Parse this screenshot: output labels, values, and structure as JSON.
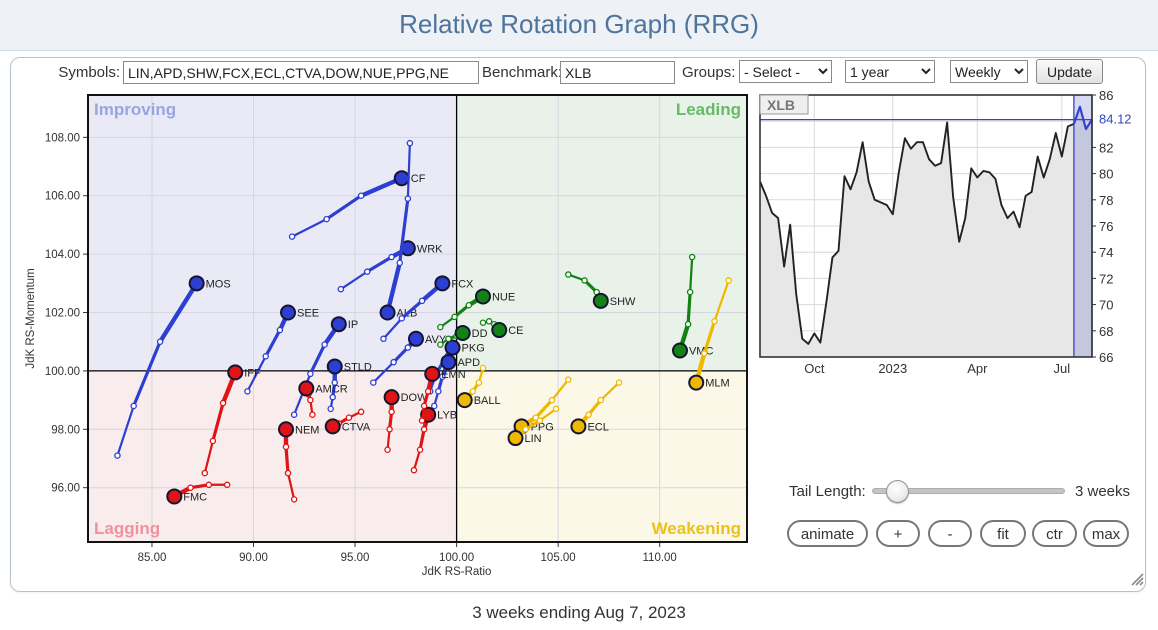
{
  "header": {
    "title": "Relative Rotation Graph (RRG)"
  },
  "controls": {
    "symbols_label": "Symbols:",
    "symbols_value": "LIN,APD,SHW,FCX,ECL,CTVA,DOW,NUE,PPG,NE",
    "benchmark_label": "Benchmark:",
    "benchmark_value": "XLB",
    "groups_label": "Groups:",
    "groups_value": "- Select -",
    "period_value": "1 year",
    "interval_value": "Weekly",
    "update_label": "Update"
  },
  "tail_control": {
    "label": "Tail Length:",
    "value": "3 weeks"
  },
  "buttons": {
    "animate": "animate",
    "plus": "+",
    "minus": "-",
    "fit": "fit",
    "ctr": "ctr",
    "max": "max"
  },
  "footer": {
    "caption": "3 weeks ending Aug 7, 2023"
  },
  "colors": {
    "series": {
      "blue": "#2d3fd3",
      "red": "#e01414",
      "green": "#128312",
      "yellow": "#efb800"
    },
    "node_stroke": "#141433",
    "quadrant_bg": {
      "improving": "#e9eaf6",
      "leading": "#e9f2e9",
      "lagging": "#f9ecec",
      "weakening": "#fbf8e8"
    },
    "quadrant_text": {
      "improving": "#98a6e0",
      "leading": "#66bc66",
      "lagging": "#f2919d",
      "weakening": "#ecc11c"
    },
    "grid": "#d6d6de",
    "axis": "#111111",
    "price_line": "#222222",
    "price_accent": "#3344cc",
    "price_fill": "#e7e7e7",
    "band_fill": "rgba(110,120,200,0.28)"
  },
  "chart_data": [
    {
      "type": "scatter",
      "title": "Relative Rotation Graph",
      "xlabel": "JdK RS-Ratio",
      "ylabel": "JdK RS-Momentum",
      "xlim": [
        81.85,
        114.3
      ],
      "ylim": [
        94.14,
        109.45
      ],
      "xticks": [
        85,
        90,
        95,
        100,
        105,
        110
      ],
      "yticks": [
        96,
        98,
        100,
        102,
        104,
        106,
        108
      ],
      "center": [
        100,
        100
      ],
      "grid": true,
      "quadrant_labels": {
        "improving": "Improving",
        "leading": "Leading",
        "lagging": "Lagging",
        "weakening": "Weakening"
      },
      "series": [
        {
          "name": "MOS",
          "color": "blue",
          "points": [
            [
              83.3,
              97.1
            ],
            [
              84.1,
              98.8
            ],
            [
              85.4,
              101.0
            ],
            [
              87.2,
              103.0
            ]
          ]
        },
        {
          "name": "CF",
          "color": "blue",
          "points": [
            [
              91.9,
              104.6
            ],
            [
              93.6,
              105.2
            ],
            [
              95.3,
              106.0
            ],
            [
              97.3,
              106.6
            ]
          ]
        },
        {
          "name": "WRK",
          "color": "blue",
          "points": [
            [
              94.3,
              102.8
            ],
            [
              95.6,
              103.4
            ],
            [
              96.8,
              103.9
            ],
            [
              97.6,
              104.2
            ]
          ]
        },
        {
          "name": "ALB",
          "color": "blue",
          "points": [
            [
              97.7,
              107.8
            ],
            [
              97.6,
              105.9
            ],
            [
              97.2,
              103.7
            ],
            [
              96.6,
              102.0
            ]
          ]
        },
        {
          "name": "SEE",
          "color": "blue",
          "points": [
            [
              89.7,
              99.3
            ],
            [
              90.6,
              100.5
            ],
            [
              91.3,
              101.4
            ],
            [
              91.7,
              102.0
            ]
          ]
        },
        {
          "name": "IP",
          "color": "blue",
          "points": [
            [
              92.0,
              98.5
            ],
            [
              92.8,
              99.9
            ],
            [
              93.5,
              100.9
            ],
            [
              94.2,
              101.6
            ]
          ]
        },
        {
          "name": "FCX",
          "color": "blue",
          "points": [
            [
              96.4,
              101.1
            ],
            [
              97.3,
              101.8
            ],
            [
              98.3,
              102.4
            ],
            [
              99.3,
              103.0
            ]
          ]
        },
        {
          "name": "AVY",
          "color": "blue",
          "points": [
            [
              95.9,
              99.6
            ],
            [
              96.9,
              100.3
            ],
            [
              97.6,
              100.8
            ],
            [
              98.0,
              101.1
            ]
          ]
        },
        {
          "name": "PKG",
          "color": "blue",
          "points": [
            [
              98.7,
              99.3
            ],
            [
              99.0,
              99.9
            ],
            [
              99.4,
              100.4
            ],
            [
              99.8,
              100.8
            ]
          ]
        },
        {
          "name": "APD",
          "color": "blue",
          "points": [
            [
              98.9,
              98.8
            ],
            [
              99.1,
              99.3
            ],
            [
              99.3,
              99.8
            ],
            [
              99.6,
              100.3
            ]
          ]
        },
        {
          "name": "STLD",
          "color": "blue",
          "points": [
            [
              93.8,
              98.7
            ],
            [
              93.9,
              99.1
            ],
            [
              94.0,
              99.6
            ],
            [
              94.0,
              100.15
            ]
          ]
        },
        {
          "name": "IFF",
          "color": "red",
          "points": [
            [
              87.6,
              96.5
            ],
            [
              88.0,
              97.6
            ],
            [
              88.5,
              98.9
            ],
            [
              89.1,
              99.95
            ]
          ]
        },
        {
          "name": "AMCR",
          "color": "red",
          "points": [
            [
              92.9,
              98.5
            ],
            [
              92.8,
              99.0
            ],
            [
              92.7,
              99.2
            ],
            [
              92.6,
              99.4
            ]
          ]
        },
        {
          "name": "NEM",
          "color": "red",
          "points": [
            [
              92.0,
              95.6
            ],
            [
              91.7,
              96.5
            ],
            [
              91.6,
              97.4
            ],
            [
              91.6,
              98.0
            ]
          ]
        },
        {
          "name": "CTVA",
          "color": "red",
          "points": [
            [
              95.3,
              98.6
            ],
            [
              94.7,
              98.4
            ],
            [
              94.2,
              98.2
            ],
            [
              93.9,
              98.1
            ]
          ]
        },
        {
          "name": "DOW",
          "color": "red",
          "points": [
            [
              96.6,
              97.3
            ],
            [
              96.7,
              98.0
            ],
            [
              96.8,
              98.6
            ],
            [
              96.8,
              99.1
            ]
          ]
        },
        {
          "name": "LYB",
          "color": "red",
          "points": [
            [
              97.9,
              96.6
            ],
            [
              98.2,
              97.3
            ],
            [
              98.4,
              98.0
            ],
            [
              98.6,
              98.5
            ]
          ]
        },
        {
          "name": "EMN",
          "color": "red",
          "points": [
            [
              98.3,
              98.3
            ],
            [
              98.4,
              98.8
            ],
            [
              98.6,
              99.3
            ],
            [
              98.8,
              99.9
            ]
          ]
        },
        {
          "name": "FMC",
          "color": "red",
          "points": [
            [
              88.7,
              96.1
            ],
            [
              87.8,
              96.1
            ],
            [
              86.9,
              96.0
            ],
            [
              86.1,
              95.7
            ]
          ]
        },
        {
          "name": "NUE",
          "color": "green",
          "points": [
            [
              99.2,
              101.5
            ],
            [
              99.9,
              101.85
            ],
            [
              100.6,
              102.25
            ],
            [
              101.3,
              102.55
            ]
          ]
        },
        {
          "name": "DD",
          "color": "green",
          "points": [
            [
              99.2,
              100.9
            ],
            [
              99.6,
              101.1
            ],
            [
              100.0,
              101.2
            ],
            [
              100.3,
              101.3
            ]
          ]
        },
        {
          "name": "CE",
          "color": "green",
          "points": [
            [
              101.3,
              101.65
            ],
            [
              101.6,
              101.7
            ],
            [
              101.85,
              101.6
            ],
            [
              102.1,
              101.4
            ]
          ]
        },
        {
          "name": "SHW",
          "color": "green",
          "points": [
            [
              105.5,
              103.3
            ],
            [
              106.3,
              103.1
            ],
            [
              106.9,
              102.7
            ],
            [
              107.1,
              102.4
            ]
          ]
        },
        {
          "name": "VMC",
          "color": "green",
          "points": [
            [
              111.6,
              103.9
            ],
            [
              111.5,
              102.7
            ],
            [
              111.4,
              101.6
            ],
            [
              111.0,
              100.7
            ]
          ]
        },
        {
          "name": "MLM",
          "color": "yellow",
          "points": [
            [
              113.4,
              103.1
            ],
            [
              112.7,
              101.7
            ],
            [
              112.2,
              100.6
            ],
            [
              111.8,
              99.6
            ]
          ]
        },
        {
          "name": "BALL",
          "color": "yellow",
          "points": [
            [
              101.3,
              100.1
            ],
            [
              101.1,
              99.6
            ],
            [
              100.8,
              99.3
            ],
            [
              100.4,
              99.0
            ]
          ]
        },
        {
          "name": "PPG",
          "color": "yellow",
          "points": [
            [
              105.5,
              99.7
            ],
            [
              104.7,
              99.0
            ],
            [
              103.9,
              98.4
            ],
            [
              103.2,
              98.1
            ]
          ]
        },
        {
          "name": "LIN",
          "color": "yellow",
          "points": [
            [
              104.9,
              98.7
            ],
            [
              104.1,
              98.3
            ],
            [
              103.4,
              98.0
            ],
            [
              102.9,
              97.7
            ]
          ]
        },
        {
          "name": "ECL",
          "color": "yellow",
          "points": [
            [
              108.0,
              99.6
            ],
            [
              107.1,
              99.0
            ],
            [
              106.5,
              98.5
            ],
            [
              106.0,
              98.1
            ]
          ]
        }
      ]
    },
    {
      "type": "line",
      "title": "XLB",
      "ylim": [
        66,
        86
      ],
      "yticks": [
        86,
        82,
        80,
        78,
        76,
        74,
        72,
        70,
        68,
        66
      ],
      "last_price": "84.12",
      "last_price_value": 84.12,
      "x_labels": [
        "Oct",
        "2023",
        "Apr",
        "Jul"
      ],
      "x_label_idx": [
        9,
        22,
        36,
        50
      ],
      "highlight_start_idx": 52,
      "values": [
        79.4,
        78.3,
        77.0,
        76.6,
        72.9,
        76.1,
        70.8,
        67.4,
        67.0,
        67.8,
        67.1,
        70.2,
        73.6,
        74.1,
        79.8,
        78.8,
        80.1,
        82.4,
        79.4,
        78.0,
        77.8,
        77.6,
        76.9,
        80.1,
        82.7,
        81.9,
        82.4,
        82.4,
        81.1,
        80.6,
        80.8,
        83.9,
        78.2,
        74.8,
        76.6,
        80.4,
        79.7,
        80.2,
        80.1,
        79.6,
        77.6,
        76.6,
        77.1,
        75.9,
        78.3,
        78.6,
        81.3,
        79.7,
        81.1,
        83.1,
        81.3,
        83.6,
        83.8,
        85.1,
        83.4,
        84.12
      ]
    }
  ]
}
